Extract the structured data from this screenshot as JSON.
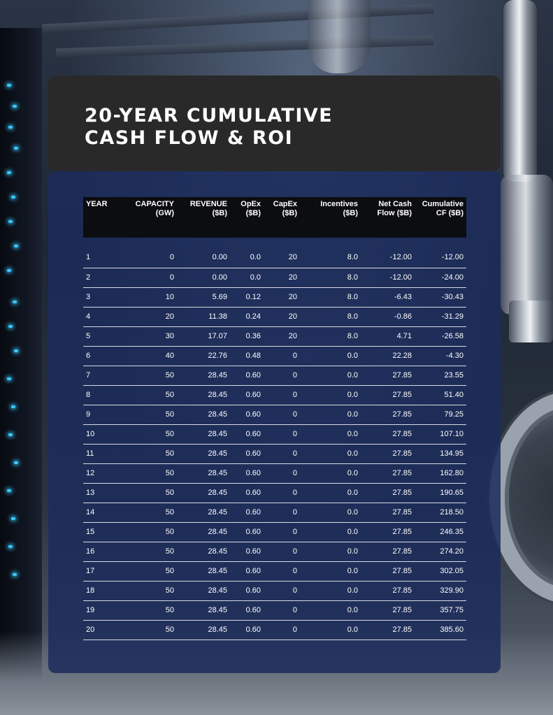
{
  "title": {
    "line1": "20-YEAR CUMULATIVE",
    "line2": "CASH FLOW & ROI"
  },
  "table": {
    "headers": [
      [
        "YEAR",
        ""
      ],
      [
        "CAPACITY",
        "(GW)"
      ],
      [
        "REVENUE",
        "($B)"
      ],
      [
        "OpEx",
        "($B)"
      ],
      [
        "CapEx",
        "($B)"
      ],
      [
        "Incentives",
        "($B)"
      ],
      [
        "Net Cash",
        "Flow ($B)"
      ],
      [
        "Cumulative",
        "CF ($B)"
      ]
    ],
    "rows": [
      [
        "1",
        "0",
        "0.00",
        "0.0",
        "20",
        "8.0",
        "-12.00",
        "-12.00"
      ],
      [
        "2",
        "0",
        "0.00",
        "0.0",
        "20",
        "8.0",
        "-12.00",
        "-24.00"
      ],
      [
        "3",
        "10",
        "5.69",
        "0.12",
        "20",
        "8.0",
        "-6.43",
        "-30.43"
      ],
      [
        "4",
        "20",
        "11.38",
        "0.24",
        "20",
        "8.0",
        "-0.86",
        "-31.29"
      ],
      [
        "5",
        "30",
        "17.07",
        "0.36",
        "20",
        "8.0",
        "4.71",
        "-26.58"
      ],
      [
        "6",
        "40",
        "22.76",
        "0.48",
        "0",
        "0.0",
        "22.28",
        "-4.30"
      ],
      [
        "7",
        "50",
        "28.45",
        "0.60",
        "0",
        "0.0",
        "27.85",
        "23.55"
      ],
      [
        "8",
        "50",
        "28.45",
        "0.60",
        "0",
        "0.0",
        "27.85",
        "51.40"
      ],
      [
        "9",
        "50",
        "28.45",
        "0.60",
        "0",
        "0.0",
        "27.85",
        "79.25"
      ],
      [
        "10",
        "50",
        "28.45",
        "0.60",
        "0",
        "0.0",
        "27.85",
        "107.10"
      ],
      [
        "11",
        "50",
        "28.45",
        "0.60",
        "0",
        "0.0",
        "27.85",
        "134.95"
      ],
      [
        "12",
        "50",
        "28.45",
        "0.60",
        "0",
        "0.0",
        "27.85",
        "162.80"
      ],
      [
        "13",
        "50",
        "28.45",
        "0.60",
        "0",
        "0.0",
        "27.85",
        "190.65"
      ],
      [
        "14",
        "50",
        "28.45",
        "0.60",
        "0",
        "0.0",
        "27.85",
        "218.50"
      ],
      [
        "15",
        "50",
        "28.45",
        "0.60",
        "0",
        "0.0",
        "27.85",
        "246.35"
      ],
      [
        "16",
        "50",
        "28.45",
        "0.60",
        "0",
        "0.0",
        "27.85",
        "274.20"
      ],
      [
        "17",
        "50",
        "28.45",
        "0.60",
        "0",
        "0.0",
        "27.85",
        "302.05"
      ],
      [
        "18",
        "50",
        "28.45",
        "0.60",
        "0",
        "0.0",
        "27.85",
        "329.90"
      ],
      [
        "19",
        "50",
        "28.45",
        "0.60",
        "0",
        "0.0",
        "27.85",
        "357.75"
      ],
      [
        "20",
        "50",
        "28.45",
        "0.60",
        "0",
        "0.0",
        "27.85",
        "385.60"
      ]
    ]
  },
  "colors": {
    "title_card": "#2a2929",
    "table_panel": "#1c2c5c",
    "header_row": "#0c0d10",
    "text": "#ffffff",
    "row_rule": "#d8dbe3"
  }
}
